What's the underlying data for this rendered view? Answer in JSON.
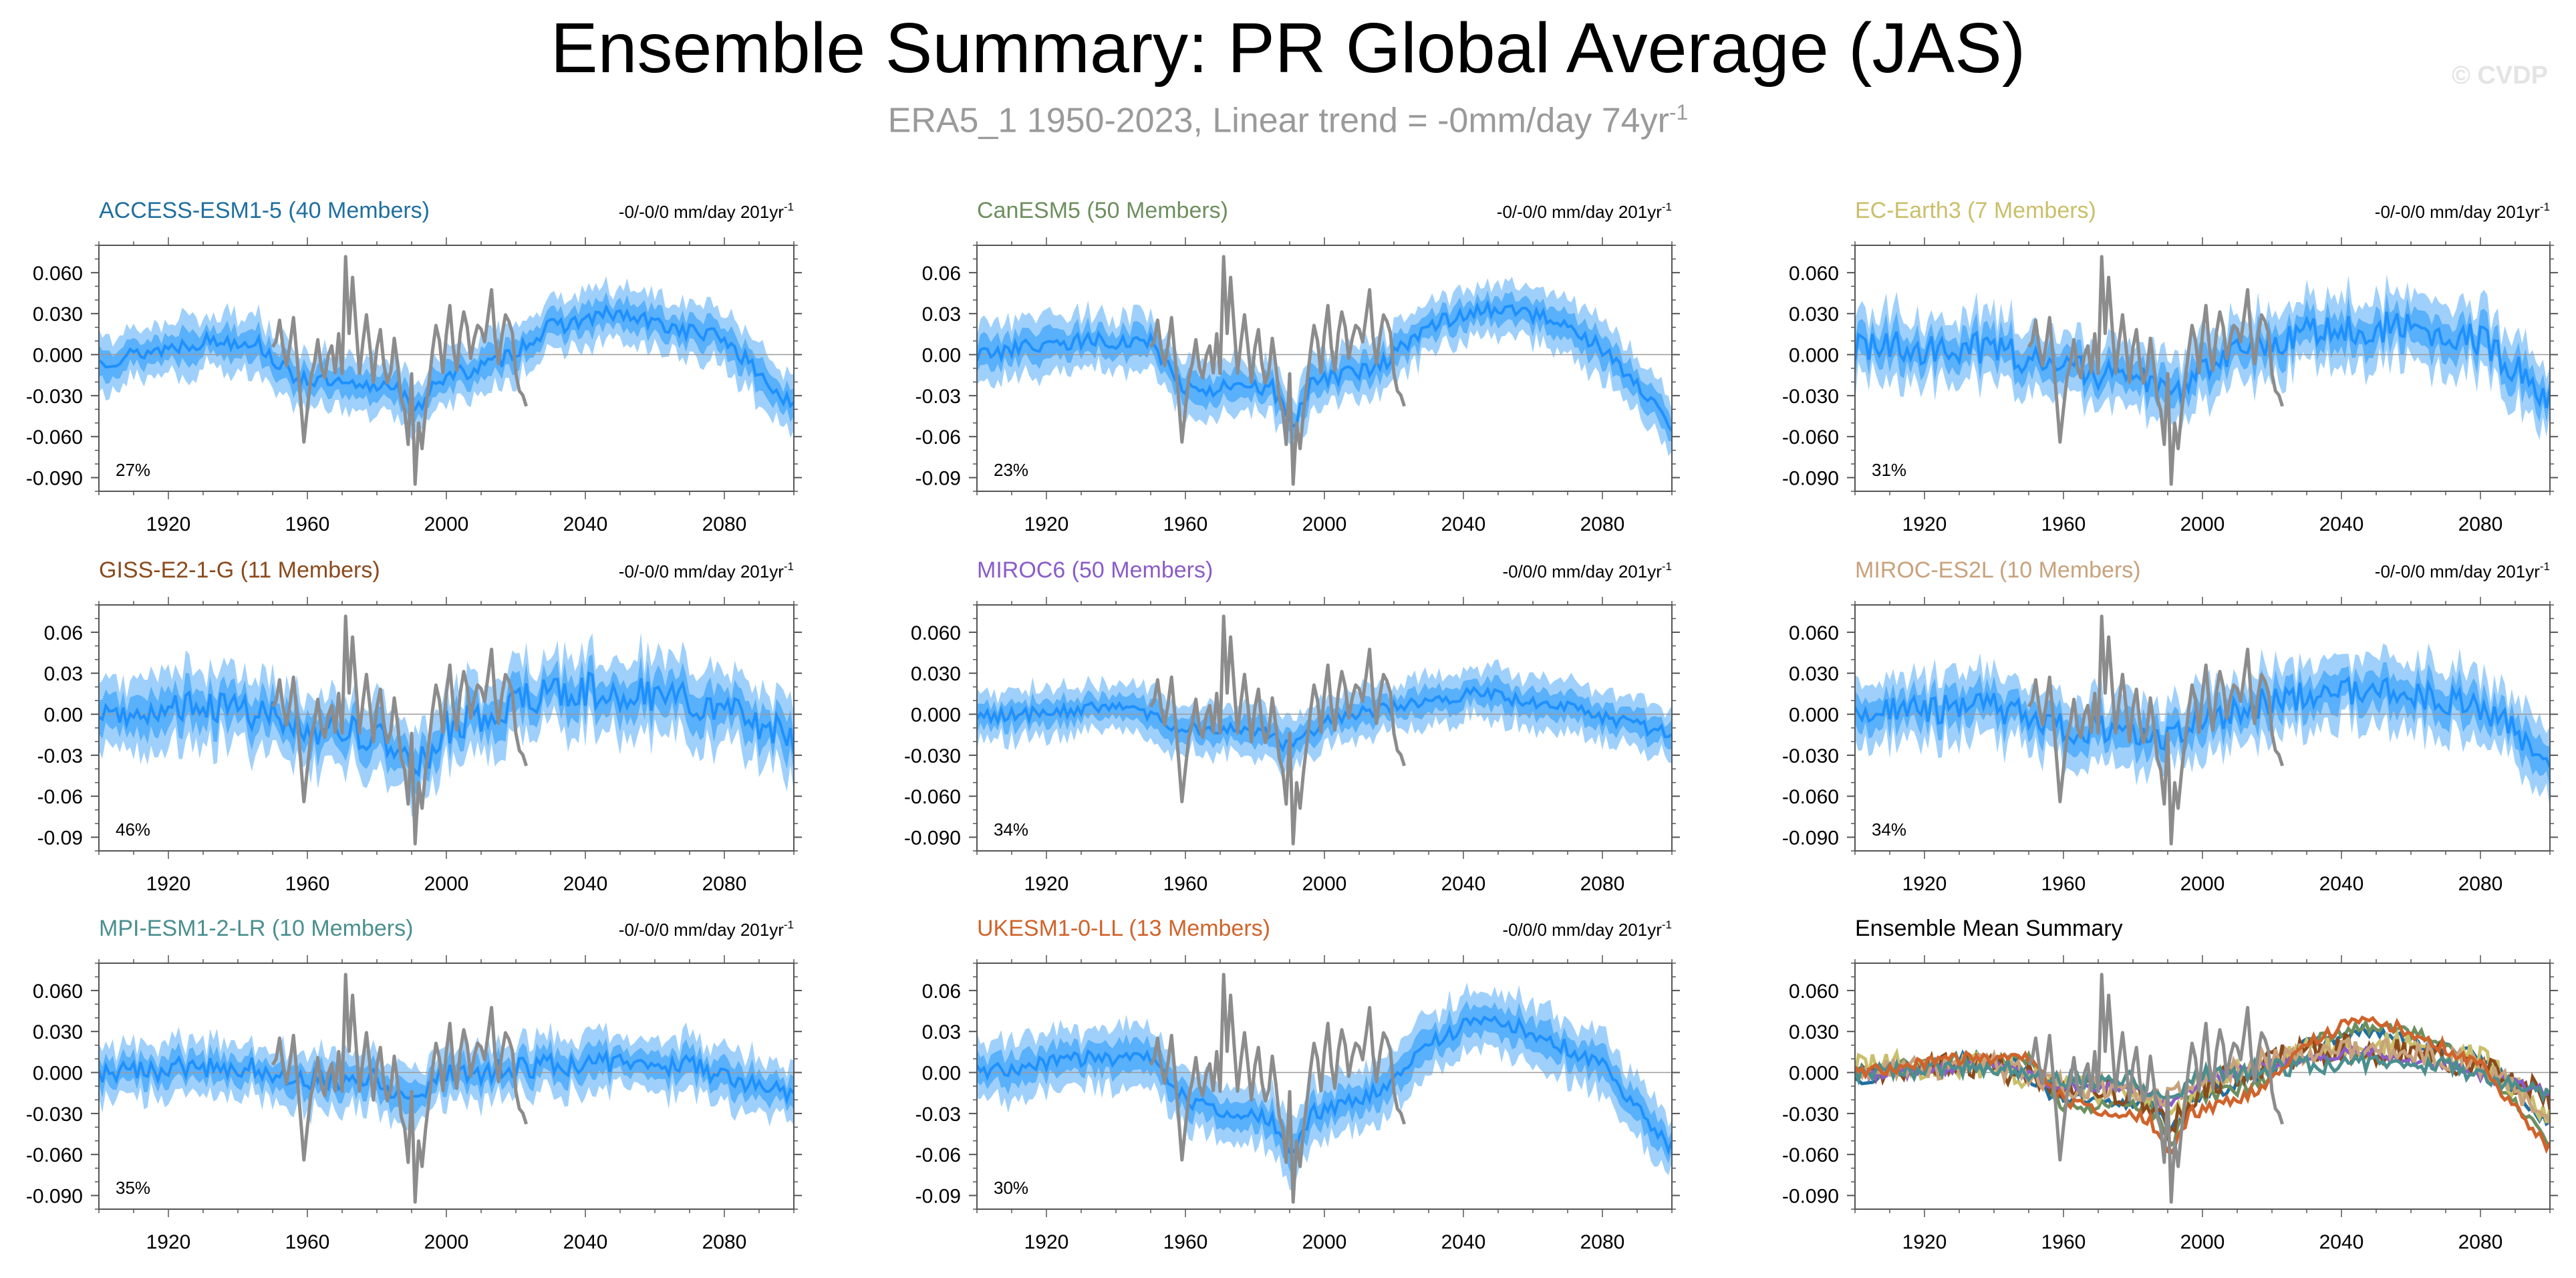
{
  "title": "Ensemble Summary: PR Global Average (JAS)",
  "subtitle": {
    "text": "ERA5_1 1950-2023, Linear trend = -0mm/day 74yr",
    "superscript": "-1"
  },
  "watermark": "© CVDP",
  "colors": {
    "observed": "#8c8c8c",
    "ensemble_mean": "#1e90ff",
    "inner_spread": "#59b0fb",
    "outer_spread": "#9fd0fc",
    "zero_line": "#9a9a9a",
    "axis": "#555555"
  },
  "chart_data": [
    {
      "type": "line",
      "id": "access",
      "name": "ACCESS-ESM1-5 (40 Members)",
      "title_color": "#1f6fa0",
      "trend_label": "-0/-0/0 mm/day 201yr",
      "trend_sup": "-1",
      "percent_label": "27%",
      "xlim": [
        1900,
        2100
      ],
      "xticks": [
        1920,
        1960,
        2000,
        2040,
        2080
      ],
      "ylim": [
        -0.1,
        0.08
      ],
      "yticks": [
        -0.09,
        -0.06,
        -0.03,
        0.0,
        0.03,
        0.06
      ],
      "ytick_labels": [
        "-0.090",
        "-0.060",
        "-0.030",
        "0.000",
        "0.030",
        "0.060"
      ],
      "mean_key": [
        [
          1900,
          -0.005
        ],
        [
          1930,
          0.01
        ],
        [
          1945,
          0.01
        ],
        [
          1955,
          -0.015
        ],
        [
          1975,
          -0.025
        ],
        [
          1985,
          -0.02
        ],
        [
          1991,
          -0.045
        ],
        [
          1996,
          -0.02
        ],
        [
          2015,
          -0.005
        ],
        [
          2030,
          0.02
        ],
        [
          2048,
          0.03
        ],
        [
          2065,
          0.02
        ],
        [
          2080,
          0.012
        ],
        [
          2100,
          -0.04
        ]
      ],
      "noise": 0.006,
      "spread_inner": 0.01,
      "spread_outer": 0.02
    },
    {
      "type": "line",
      "id": "canesm",
      "name": "CanESM5 (50 Members)",
      "title_color": "#6d8f5e",
      "trend_label": "-0/-0/0 mm/day 201yr",
      "trend_sup": "-1",
      "percent_label": "23%",
      "xlim": [
        1900,
        2100
      ],
      "xticks": [
        1920,
        1960,
        2000,
        2040,
        2080
      ],
      "ylim": [
        -0.1,
        0.08
      ],
      "yticks": [
        -0.09,
        -0.06,
        -0.03,
        0.0,
        0.03,
        0.06
      ],
      "ytick_labels": [
        "-0.09",
        "-0.06",
        "-0.03",
        "0.00",
        "0.03",
        "0.06"
      ],
      "mean_key": [
        [
          1900,
          0.0
        ],
        [
          1930,
          0.01
        ],
        [
          1950,
          0.01
        ],
        [
          1960,
          -0.025
        ],
        [
          1985,
          -0.025
        ],
        [
          1991,
          -0.055
        ],
        [
          1996,
          -0.02
        ],
        [
          2015,
          -0.01
        ],
        [
          2030,
          0.02
        ],
        [
          2045,
          0.035
        ],
        [
          2060,
          0.03
        ],
        [
          2080,
          0.005
        ],
        [
          2100,
          -0.05
        ]
      ],
      "noise": 0.006,
      "spread_inner": 0.01,
      "spread_outer": 0.02
    },
    {
      "type": "line",
      "id": "ecearth",
      "name": "EC-Earth3 (7 Members)",
      "title_color": "#c9bf6a",
      "trend_label": "-0/-0/0 mm/day 201yr",
      "trend_sup": "-1",
      "percent_label": "31%",
      "xlim": [
        1900,
        2100
      ],
      "xticks": [
        1920,
        1960,
        2000,
        2040,
        2080
      ],
      "ylim": [
        -0.1,
        0.08
      ],
      "yticks": [
        -0.09,
        -0.06,
        -0.03,
        0.0,
        0.03,
        0.06
      ],
      "ytick_labels": [
        "-0.090",
        "-0.060",
        "-0.030",
        "0.000",
        "0.030",
        "0.060"
      ],
      "mean_key": [
        [
          1900,
          0.005
        ],
        [
          1940,
          0.005
        ],
        [
          1960,
          -0.01
        ],
        [
          1980,
          -0.015
        ],
        [
          1991,
          -0.035
        ],
        [
          2000,
          -0.01
        ],
        [
          2020,
          0.01
        ],
        [
          2040,
          0.02
        ],
        [
          2060,
          0.02
        ],
        [
          2080,
          0.01
        ],
        [
          2100,
          -0.03
        ]
      ],
      "noise": 0.012,
      "spread_inner": 0.012,
      "spread_outer": 0.024
    },
    {
      "type": "line",
      "id": "giss",
      "name": "GISS-E2-1-G (11 Members)",
      "title_color": "#8b4a1c",
      "trend_label": "-0/-0/0 mm/day 201yr",
      "trend_sup": "-1",
      "percent_label": "46%",
      "xlim": [
        1900,
        2100
      ],
      "xticks": [
        1920,
        1960,
        2000,
        2040,
        2080
      ],
      "ylim": [
        -0.1,
        0.08
      ],
      "yticks": [
        -0.09,
        -0.06,
        -0.03,
        0.0,
        0.03,
        0.06
      ],
      "ytick_labels": [
        "-0.09",
        "-0.06",
        "-0.03",
        "0.00",
        "0.03",
        "0.06"
      ],
      "mean_key": [
        [
          1900,
          0.0
        ],
        [
          1940,
          0.005
        ],
        [
          1960,
          -0.01
        ],
        [
          1980,
          -0.015
        ],
        [
          1991,
          -0.04
        ],
        [
          2000,
          -0.01
        ],
        [
          2020,
          0.01
        ],
        [
          2040,
          0.018
        ],
        [
          2060,
          0.015
        ],
        [
          2080,
          0.005
        ],
        [
          2100,
          -0.02
        ]
      ],
      "noise": 0.013,
      "spread_inner": 0.013,
      "spread_outer": 0.026
    },
    {
      "type": "line",
      "id": "miroc6",
      "name": "MIROC6 (50 Members)",
      "title_color": "#8a5cc9",
      "trend_label": "-0/0/0 mm/day 201yr",
      "trend_sup": "-1",
      "percent_label": "34%",
      "xlim": [
        1900,
        2100
      ],
      "xticks": [
        1920,
        1960,
        2000,
        2040,
        2080
      ],
      "ylim": [
        -0.1,
        0.08
      ],
      "yticks": [
        -0.09,
        -0.06,
        -0.03,
        0.0,
        0.03,
        0.06
      ],
      "ytick_labels": [
        "-0.090",
        "-0.060",
        "-0.030",
        "0.000",
        "0.030",
        "0.060"
      ],
      "mean_key": [
        [
          1900,
          -0.002
        ],
        [
          1940,
          0.005
        ],
        [
          1960,
          -0.01
        ],
        [
          1980,
          -0.01
        ],
        [
          1991,
          -0.025
        ],
        [
          2000,
          -0.005
        ],
        [
          2030,
          0.01
        ],
        [
          2045,
          0.015
        ],
        [
          2070,
          0.005
        ],
        [
          2100,
          -0.015
        ]
      ],
      "noise": 0.005,
      "spread_inner": 0.009,
      "spread_outer": 0.018
    },
    {
      "type": "line",
      "id": "mirocesl",
      "name": "MIROC-ES2L (10 Members)",
      "title_color": "#c8a27c",
      "trend_label": "-0/-0/0 mm/day 201yr",
      "trend_sup": "-1",
      "percent_label": "34%",
      "xlim": [
        1900,
        2100
      ],
      "xticks": [
        1920,
        1960,
        2000,
        2040,
        2080
      ],
      "ylim": [
        -0.1,
        0.08
      ],
      "yticks": [
        -0.09,
        -0.06,
        -0.03,
        0.0,
        0.03,
        0.06
      ],
      "ytick_labels": [
        "-0.090",
        "-0.060",
        "-0.030",
        "0.000",
        "0.030",
        "0.060"
      ],
      "mean_key": [
        [
          1900,
          0.0
        ],
        [
          1940,
          0.005
        ],
        [
          1960,
          -0.01
        ],
        [
          1980,
          -0.012
        ],
        [
          1991,
          -0.02
        ],
        [
          2000,
          -0.005
        ],
        [
          2020,
          0.01
        ],
        [
          2040,
          0.018
        ],
        [
          2060,
          0.015
        ],
        [
          2080,
          0.005
        ],
        [
          2100,
          -0.03
        ]
      ],
      "noise": 0.011,
      "spread_inner": 0.012,
      "spread_outer": 0.024
    },
    {
      "type": "line",
      "id": "mpi",
      "name": "MPI-ESM1-2-LR (10 Members)",
      "title_color": "#4a8f8f",
      "trend_label": "-0/-0/0 mm/day 201yr",
      "trend_sup": "-1",
      "percent_label": "35%",
      "xlim": [
        1900,
        2100
      ],
      "xticks": [
        1920,
        1960,
        2000,
        2040,
        2080
      ],
      "ylim": [
        -0.1,
        0.08
      ],
      "yticks": [
        -0.09,
        -0.06,
        -0.03,
        0.0,
        0.03,
        0.06
      ],
      "ytick_labels": [
        "-0.090",
        "-0.060",
        "-0.030",
        "0.000",
        "0.030",
        "0.060"
      ],
      "mean_key": [
        [
          1900,
          0.0
        ],
        [
          1940,
          0.005
        ],
        [
          1960,
          -0.005
        ],
        [
          1980,
          -0.005
        ],
        [
          1991,
          -0.02
        ],
        [
          2000,
          -0.002
        ],
        [
          2030,
          0.005
        ],
        [
          2050,
          0.008
        ],
        [
          2070,
          0.005
        ],
        [
          2100,
          -0.015
        ]
      ],
      "noise": 0.008,
      "spread_inner": 0.01,
      "spread_outer": 0.02
    },
    {
      "type": "line",
      "id": "ukesm",
      "name": "UKESM1-0-LL (13 Members)",
      "title_color": "#d0632b",
      "trend_label": "-0/0/0 mm/day 201yr",
      "trend_sup": "-1",
      "percent_label": "30%",
      "xlim": [
        1900,
        2100
      ],
      "xticks": [
        1920,
        1960,
        2000,
        2040,
        2080
      ],
      "ylim": [
        -0.1,
        0.08
      ],
      "yticks": [
        -0.09,
        -0.06,
        -0.03,
        0.0,
        0.03,
        0.06
      ],
      "ytick_labels": [
        "-0.09",
        "-0.06",
        "-0.03",
        "0.00",
        "0.03",
        "0.06"
      ],
      "mean_key": [
        [
          1900,
          0.0
        ],
        [
          1930,
          0.01
        ],
        [
          1950,
          0.01
        ],
        [
          1960,
          -0.02
        ],
        [
          1985,
          -0.035
        ],
        [
          1991,
          -0.06
        ],
        [
          1996,
          -0.03
        ],
        [
          2015,
          -0.015
        ],
        [
          2030,
          0.02
        ],
        [
          2045,
          0.04
        ],
        [
          2060,
          0.03
        ],
        [
          2080,
          0.005
        ],
        [
          2100,
          -0.055
        ]
      ],
      "noise": 0.006,
      "spread_inner": 0.011,
      "spread_outer": 0.022
    },
    {
      "type": "line",
      "id": "summary",
      "name": "Ensemble Mean Summary",
      "title_color": "#000000",
      "xlim": [
        1900,
        2100
      ],
      "xticks": [
        1920,
        1960,
        2000,
        2040,
        2080
      ],
      "ylim": [
        -0.1,
        0.08
      ],
      "yticks": [
        -0.09,
        -0.06,
        -0.03,
        0.0,
        0.03,
        0.06
      ],
      "ytick_labels": [
        "-0.090",
        "-0.060",
        "-0.030",
        "0.000",
        "0.030",
        "0.060"
      ],
      "series": [
        {
          "model": "ACCESS-ESM1-5",
          "color": "#1f6fa0"
        },
        {
          "model": "CanESM5",
          "color": "#6d8f5e"
        },
        {
          "model": "EC-Earth3",
          "color": "#c9bf6a"
        },
        {
          "model": "GISS-E2-1-G",
          "color": "#8b4a1c"
        },
        {
          "model": "MIROC6",
          "color": "#8a5cc9"
        },
        {
          "model": "MIROC-ES2L",
          "color": "#c8a27c"
        },
        {
          "model": "MPI-ESM1-2-LR",
          "color": "#4a8f8f"
        },
        {
          "model": "UKESM1-0-LL",
          "color": "#d0632b"
        }
      ]
    }
  ],
  "observed_series": {
    "name": "ERA5_1",
    "years": [
      1950,
      2023
    ],
    "key": [
      [
        1950,
        0.005
      ],
      [
        1952,
        0.02
      ],
      [
        1954,
        -0.01
      ],
      [
        1956,
        0.03
      ],
      [
        1958,
        -0.03
      ],
      [
        1959,
        -0.065
      ],
      [
        1961,
        -0.02
      ],
      [
        1963,
        0.005
      ],
      [
        1965,
        -0.02
      ],
      [
        1967,
        0.01
      ],
      [
        1968,
        -0.015
      ],
      [
        1969,
        0.02
      ],
      [
        1970,
        -0.01
      ],
      [
        1971,
        0.075
      ],
      [
        1972,
        0.02
      ],
      [
        1973,
        0.06
      ],
      [
        1975,
        -0.01
      ],
      [
        1977,
        0.03
      ],
      [
        1979,
        -0.02
      ],
      [
        1981,
        0.02
      ],
      [
        1983,
        -0.025
      ],
      [
        1985,
        0.01
      ],
      [
        1987,
        -0.03
      ],
      [
        1989,
        -0.06
      ],
      [
        1990,
        -0.02
      ],
      [
        1991,
        -0.09
      ],
      [
        1992,
        -0.05
      ],
      [
        1993,
        -0.07
      ],
      [
        1995,
        -0.02
      ],
      [
        1997,
        0.02
      ],
      [
        1999,
        -0.01
      ],
      [
        2001,
        0.03
      ],
      [
        2003,
        -0.01
      ],
      [
        2005,
        0.035
      ],
      [
        2007,
        -0.005
      ],
      [
        2009,
        0.025
      ],
      [
        2011,
        0.005
      ],
      [
        2013,
        0.045
      ],
      [
        2015,
        -0.01
      ],
      [
        2017,
        0.03
      ],
      [
        2019,
        0.01
      ],
      [
        2021,
        -0.03
      ],
      [
        2023,
        -0.04
      ]
    ]
  }
}
